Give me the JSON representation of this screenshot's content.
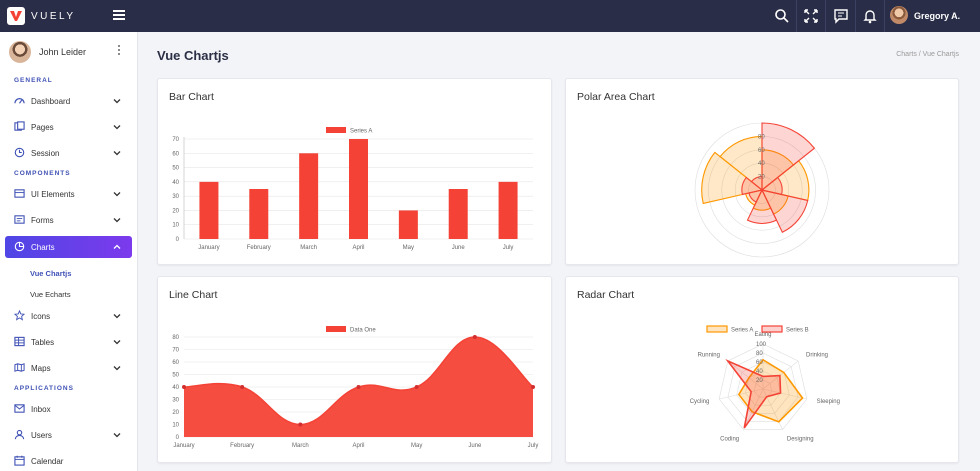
{
  "app": {
    "brand": "VUELY",
    "user_name": "Gregory A.",
    "accent": "#4f46e5",
    "topbar_icons": [
      "search-icon",
      "fullscreen-icon",
      "chat-icon",
      "bell-icon"
    ]
  },
  "sidebar": {
    "profile_name": "John Leider",
    "sections": {
      "general": "GENERAL",
      "components": "COMPONENTS",
      "applications": "APPLICATIONS"
    },
    "items": [
      {
        "label": "Dashboard",
        "icon": "dashboard-icon"
      },
      {
        "label": "Pages",
        "icon": "pages-icon"
      },
      {
        "label": "Session",
        "icon": "session-icon"
      },
      {
        "label": "UI Elements",
        "icon": "ui-elements-icon"
      },
      {
        "label": "Forms",
        "icon": "forms-icon"
      },
      {
        "label": "Charts",
        "icon": "charts-icon"
      },
      {
        "label": "Icons",
        "icon": "star-icon"
      },
      {
        "label": "Tables",
        "icon": "tables-icon"
      },
      {
        "label": "Maps",
        "icon": "maps-icon"
      },
      {
        "label": "Inbox",
        "icon": "inbox-icon"
      },
      {
        "label": "Users",
        "icon": "users-icon"
      },
      {
        "label": "Calendar",
        "icon": "calendar-icon"
      }
    ],
    "charts_sub": [
      "Vue Chartjs",
      "Vue Echarts"
    ]
  },
  "main": {
    "title": "Vue Chartjs",
    "breadcrumb": "Charts / Vue Chartjs",
    "cards": {
      "bar": "Bar Chart",
      "polar": "Polar Area Chart",
      "line": "Line Chart",
      "radar": "Radar Chart"
    }
  },
  "chart_data": [
    {
      "type": "bar",
      "title": "Bar Chart",
      "categories": [
        "January",
        "February",
        "March",
        "April",
        "May",
        "June",
        "July"
      ],
      "series": [
        {
          "name": "Series A",
          "values": [
            40,
            35,
            60,
            70,
            20,
            35,
            40
          ],
          "color": "#f44336"
        }
      ],
      "ylim": [
        0,
        70
      ],
      "yticks": [
        0,
        10,
        20,
        30,
        40,
        50,
        60,
        70
      ],
      "legend": "top-center"
    },
    {
      "type": "polar",
      "title": "Polar Area Chart",
      "rlim": [
        0,
        100
      ],
      "rticks": [
        20,
        40,
        60,
        80
      ],
      "series": [
        {
          "name": "",
          "values": [
            60,
            70,
            40,
            30,
            25,
            90,
            80
          ],
          "color": "#ff9800"
        },
        {
          "name": "",
          "values": [
            100,
            30,
            70,
            50,
            20,
            30,
            20
          ],
          "color": "#f44336"
        }
      ]
    },
    {
      "type": "line",
      "title": "Line Chart",
      "categories": [
        "January",
        "February",
        "March",
        "April",
        "May",
        "June",
        "July"
      ],
      "series": [
        {
          "name": "Data One",
          "values": [
            40,
            40,
            10,
            40,
            40,
            80,
            40
          ],
          "color": "#f44336",
          "fill": true
        }
      ],
      "ylim": [
        0,
        80
      ],
      "yticks": [
        0,
        10,
        20,
        30,
        40,
        50,
        60,
        70,
        80
      ],
      "legend": "top-center"
    },
    {
      "type": "radar",
      "title": "Radar Chart",
      "categories": [
        "Eating",
        "Drinking",
        "Sleeping",
        "Designing",
        "Coding",
        "Cycling",
        "Running"
      ],
      "rlim": [
        0,
        100
      ],
      "rticks": [
        20,
        40,
        60,
        80,
        100
      ],
      "series": [
        {
          "name": "Series A",
          "values": [
            65,
            59,
            90,
            81,
            56,
            55,
            40
          ],
          "color": "#ff9800"
        },
        {
          "name": "Series B",
          "values": [
            28,
            48,
            40,
            19,
            96,
            27,
            100
          ],
          "color": "#f44336"
        }
      ],
      "legend": "top-center"
    }
  ]
}
